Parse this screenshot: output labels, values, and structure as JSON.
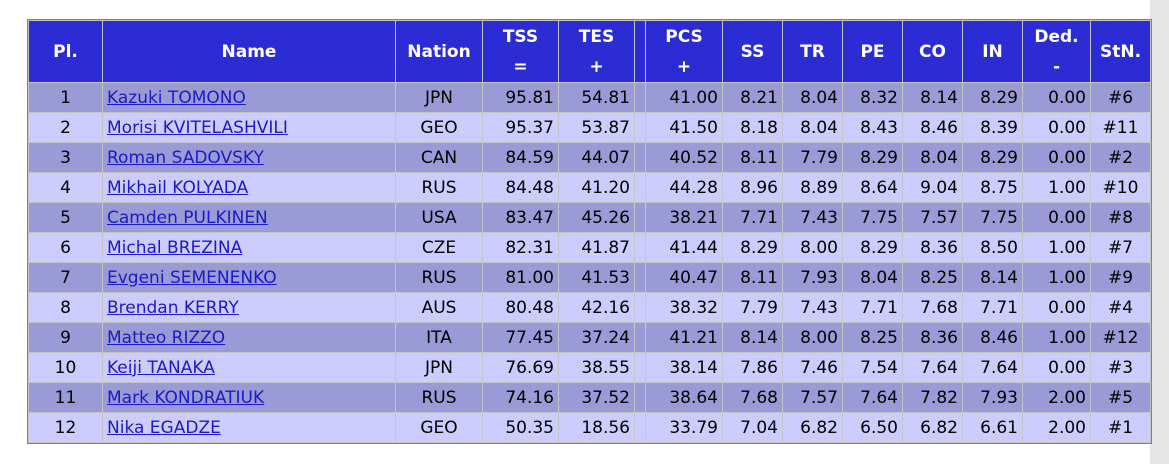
{
  "headers": {
    "pl": "Pl.",
    "name": "Name",
    "nation": "Nation",
    "tss": "TSS",
    "tss_sub": "=",
    "tes": "TES",
    "tes_sub": "+",
    "pcs": "PCS",
    "pcs_sub": "+",
    "ss": "SS",
    "tr": "TR",
    "pe": "PE",
    "co": "CO",
    "in": "IN",
    "ded": "Ded.",
    "ded_sub": "-",
    "stn": "StN."
  },
  "rows": [
    {
      "pl": "1",
      "name": "Kazuki TOMONO",
      "nation": "JPN",
      "tss": "95.81",
      "tes": "54.81",
      "pcs": "41.00",
      "ss": "8.21",
      "tr": "8.04",
      "pe": "8.32",
      "co": "8.14",
      "in": "8.29",
      "ded": "0.00",
      "stn": "#6"
    },
    {
      "pl": "2",
      "name": "Morisi KVITELASHVILI",
      "nation": "GEO",
      "tss": "95.37",
      "tes": "53.87",
      "pcs": "41.50",
      "ss": "8.18",
      "tr": "8.04",
      "pe": "8.43",
      "co": "8.46",
      "in": "8.39",
      "ded": "0.00",
      "stn": "#11"
    },
    {
      "pl": "3",
      "name": "Roman SADOVSKY",
      "nation": "CAN",
      "tss": "84.59",
      "tes": "44.07",
      "pcs": "40.52",
      "ss": "8.11",
      "tr": "7.79",
      "pe": "8.29",
      "co": "8.04",
      "in": "8.29",
      "ded": "0.00",
      "stn": "#2"
    },
    {
      "pl": "4",
      "name": "Mikhail KOLYADA",
      "nation": "RUS",
      "tss": "84.48",
      "tes": "41.20",
      "pcs": "44.28",
      "ss": "8.96",
      "tr": "8.89",
      "pe": "8.64",
      "co": "9.04",
      "in": "8.75",
      "ded": "1.00",
      "stn": "#10"
    },
    {
      "pl": "5",
      "name": "Camden PULKINEN",
      "nation": "USA",
      "tss": "83.47",
      "tes": "45.26",
      "pcs": "38.21",
      "ss": "7.71",
      "tr": "7.43",
      "pe": "7.75",
      "co": "7.57",
      "in": "7.75",
      "ded": "0.00",
      "stn": "#8"
    },
    {
      "pl": "6",
      "name": "Michal BREZINA",
      "nation": "CZE",
      "tss": "82.31",
      "tes": "41.87",
      "pcs": "41.44",
      "ss": "8.29",
      "tr": "8.00",
      "pe": "8.29",
      "co": "8.36",
      "in": "8.50",
      "ded": "1.00",
      "stn": "#7"
    },
    {
      "pl": "7",
      "name": "Evgeni SEMENENKO",
      "nation": "RUS",
      "tss": "81.00",
      "tes": "41.53",
      "pcs": "40.47",
      "ss": "8.11",
      "tr": "7.93",
      "pe": "8.04",
      "co": "8.25",
      "in": "8.14",
      "ded": "1.00",
      "stn": "#9"
    },
    {
      "pl": "8",
      "name": "Brendan KERRY",
      "nation": "AUS",
      "tss": "80.48",
      "tes": "42.16",
      "pcs": "38.32",
      "ss": "7.79",
      "tr": "7.43",
      "pe": "7.71",
      "co": "7.68",
      "in": "7.71",
      "ded": "0.00",
      "stn": "#4"
    },
    {
      "pl": "9",
      "name": "Matteo RIZZO",
      "nation": "ITA",
      "tss": "77.45",
      "tes": "37.24",
      "pcs": "41.21",
      "ss": "8.14",
      "tr": "8.00",
      "pe": "8.25",
      "co": "8.36",
      "in": "8.46",
      "ded": "1.00",
      "stn": "#12"
    },
    {
      "pl": "10",
      "name": "Keiji TANAKA",
      "nation": "JPN",
      "tss": "76.69",
      "tes": "38.55",
      "pcs": "38.14",
      "ss": "7.86",
      "tr": "7.46",
      "pe": "7.54",
      "co": "7.64",
      "in": "7.64",
      "ded": "0.00",
      "stn": "#3"
    },
    {
      "pl": "11",
      "name": "Mark KONDRATIUK",
      "nation": "RUS",
      "tss": "74.16",
      "tes": "37.52",
      "pcs": "38.64",
      "ss": "7.68",
      "tr": "7.57",
      "pe": "7.64",
      "co": "7.82",
      "in": "7.93",
      "ded": "2.00",
      "stn": "#5"
    },
    {
      "pl": "12",
      "name": "Nika EGADZE",
      "nation": "GEO",
      "tss": "50.35",
      "tes": "18.56",
      "pcs": "33.79",
      "ss": "7.04",
      "tr": "6.82",
      "pe": "6.50",
      "co": "6.82",
      "in": "6.61",
      "ded": "2.00",
      "stn": "#1"
    }
  ],
  "colors": {
    "header_bg": "#2c2cd4",
    "row_odd": "#9a9ad6",
    "row_even": "#ccccff",
    "link": "#1a1acc"
  }
}
